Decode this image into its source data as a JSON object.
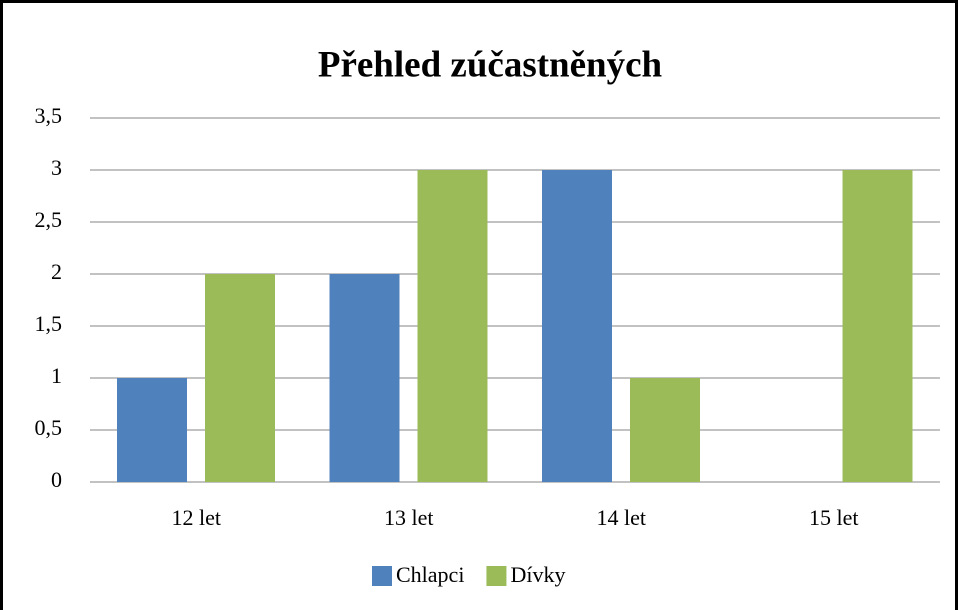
{
  "chart_data": {
    "type": "bar",
    "title": "Přehled zúčastněných",
    "categories": [
      "12 let",
      "13 let",
      "14 let",
      "15 let"
    ],
    "series": [
      {
        "name": "Chlapci",
        "color": "#4f81bd",
        "values": [
          1,
          2,
          3,
          0
        ]
      },
      {
        "name": "Dívky",
        "color": "#9bbb59",
        "values": [
          2,
          3,
          1,
          3
        ]
      }
    ],
    "ylim": [
      0,
      3.5
    ],
    "yticks": [
      0,
      {
        "value": 0.5,
        "label": "0,5"
      },
      1,
      {
        "value": 1.5,
        "label": "1,5"
      },
      2,
      {
        "value": 2.5,
        "label": "2,5"
      },
      3,
      {
        "value": 3.5,
        "label": "3,5"
      }
    ],
    "grid": true,
    "legend": "bottom"
  }
}
